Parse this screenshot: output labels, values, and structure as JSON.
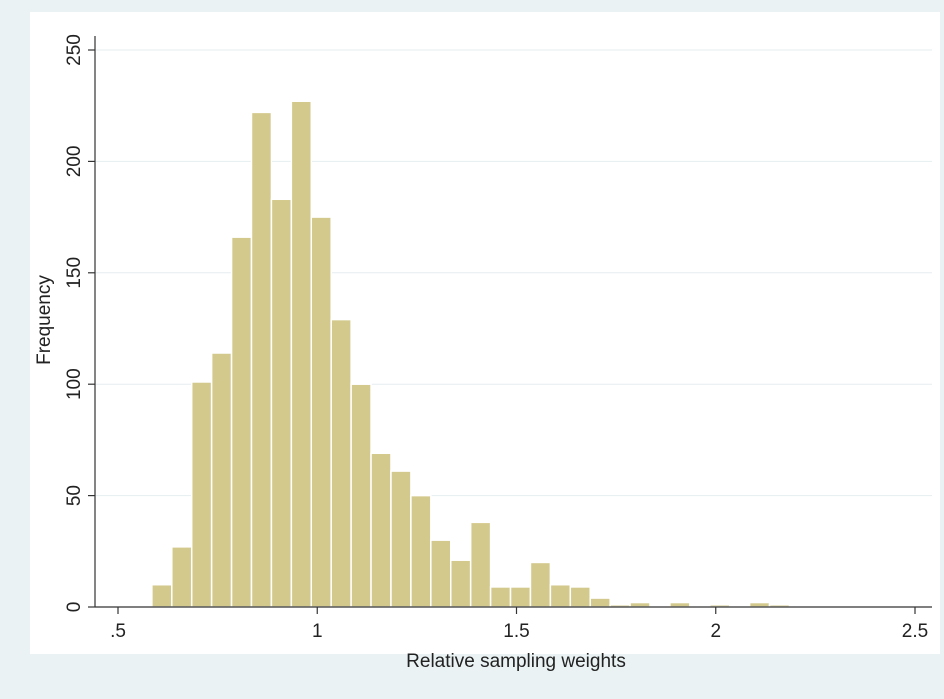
{
  "chart_data": {
    "type": "histogram",
    "title": "",
    "xlabel": "Relative sampling weights",
    "ylabel": "Frequency",
    "xlim": [
      0.5,
      2.5
    ],
    "ylim": [
      0,
      250
    ],
    "x_ticks": [
      0.5,
      1,
      1.5,
      2,
      2.5
    ],
    "x_tick_labels": [
      ".5",
      "1",
      "1.5",
      "2",
      "2.5"
    ],
    "y_ticks": [
      0,
      50,
      100,
      150,
      200,
      250
    ],
    "y_tick_labels": [
      "0",
      "50",
      "100",
      "150",
      "200",
      "250"
    ],
    "grid": "horizontal",
    "legend": "none",
    "bin_width": 0.05,
    "bins": [
      {
        "start": 0.585,
        "value": 10
      },
      {
        "start": 0.635,
        "value": 27
      },
      {
        "start": 0.685,
        "value": 101
      },
      {
        "start": 0.735,
        "value": 114
      },
      {
        "start": 0.785,
        "value": 166
      },
      {
        "start": 0.835,
        "value": 222
      },
      {
        "start": 0.885,
        "value": 183
      },
      {
        "start": 0.935,
        "value": 227
      },
      {
        "start": 0.985,
        "value": 175
      },
      {
        "start": 1.035,
        "value": 129
      },
      {
        "start": 1.085,
        "value": 100
      },
      {
        "start": 1.135,
        "value": 69
      },
      {
        "start": 1.185,
        "value": 61
      },
      {
        "start": 1.235,
        "value": 50
      },
      {
        "start": 1.285,
        "value": 30
      },
      {
        "start": 1.335,
        "value": 21
      },
      {
        "start": 1.385,
        "value": 38
      },
      {
        "start": 1.435,
        "value": 9
      },
      {
        "start": 1.485,
        "value": 9
      },
      {
        "start": 1.535,
        "value": 20
      },
      {
        "start": 1.585,
        "value": 10
      },
      {
        "start": 1.635,
        "value": 9
      },
      {
        "start": 1.685,
        "value": 4
      },
      {
        "start": 1.735,
        "value": 1
      },
      {
        "start": 1.785,
        "value": 2
      },
      {
        "start": 1.835,
        "value": 0
      },
      {
        "start": 1.885,
        "value": 2
      },
      {
        "start": 1.935,
        "value": 0
      },
      {
        "start": 1.985,
        "value": 1
      },
      {
        "start": 2.035,
        "value": 0
      },
      {
        "start": 2.085,
        "value": 2
      },
      {
        "start": 2.135,
        "value": 1
      }
    ],
    "colors": {
      "background": "#eaf2f3",
      "plot_area": "#ffffff",
      "bar_fill": "#d4c98c",
      "bar_edge": "#ffffff",
      "grid": "#e6eeef",
      "axis": "#333333"
    }
  }
}
